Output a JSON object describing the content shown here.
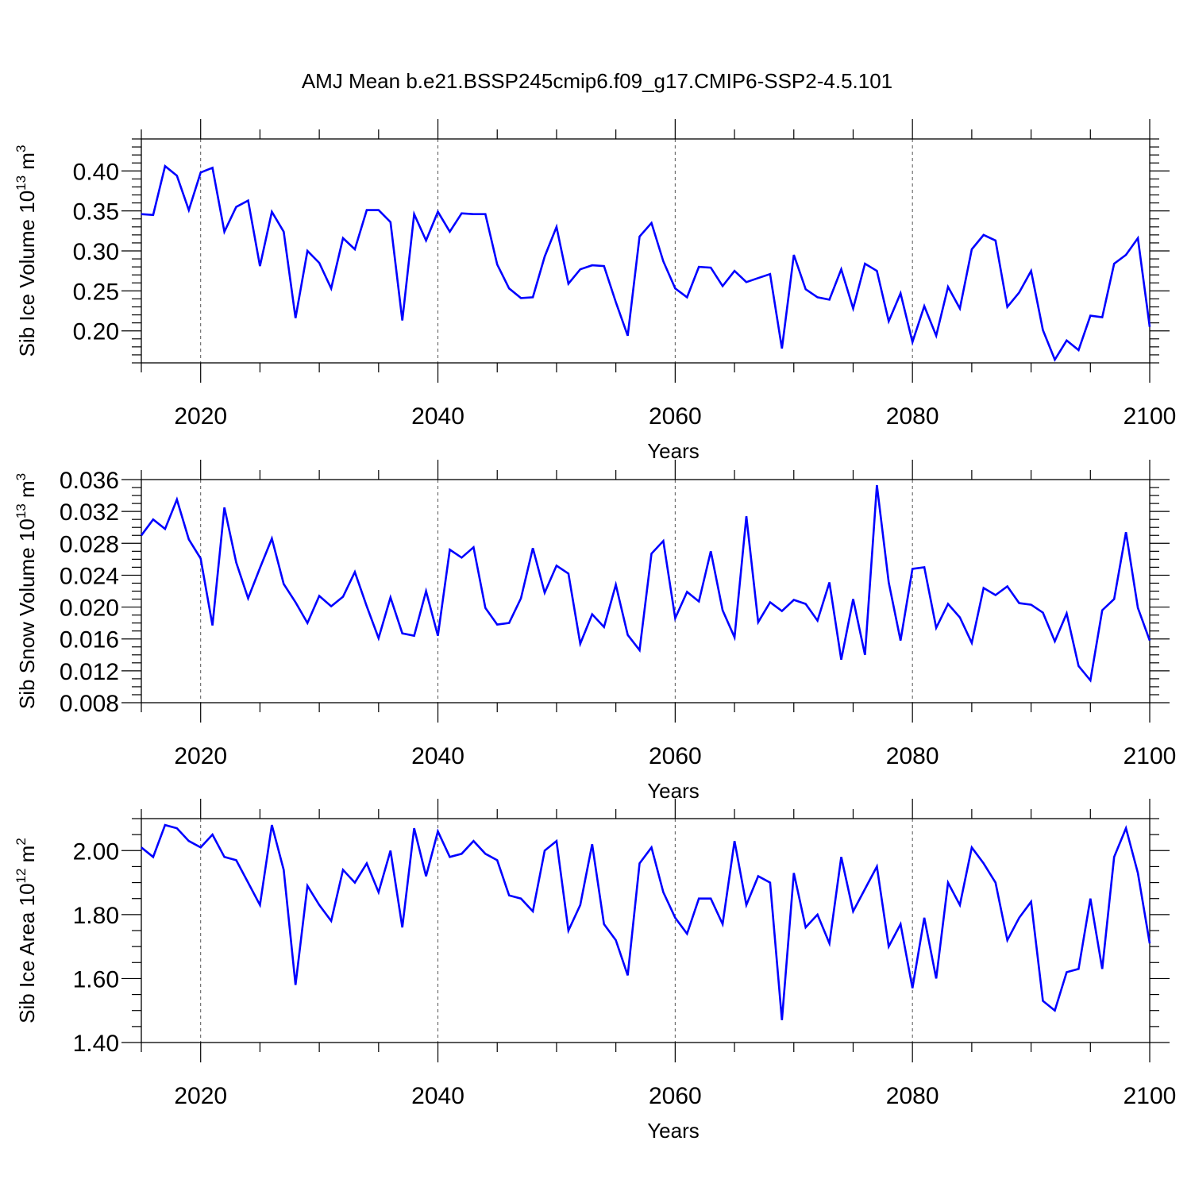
{
  "title": "AMJ Mean b.e21.BSSP245cmip6.f09_g17.CMIP6-SSP2-4.5.101",
  "colors": {
    "line": "#0000ff",
    "axis": "#000000",
    "grid": "#555555"
  },
  "chart_data": [
    {
      "type": "line",
      "ylabel": "Sib Ice Volume 10",
      "ylabel_sup1": "13",
      "ylabel_mid": " m",
      "ylabel_sup2": "3",
      "xlabel": "Years",
      "xlim": [
        2015,
        2100
      ],
      "ylim": [
        0.16,
        0.44
      ],
      "yticks": [
        0.2,
        0.25,
        0.3,
        0.35,
        0.4
      ],
      "ytick_labels": [
        "0.20",
        "0.25",
        "0.30",
        "0.35",
        "0.40"
      ],
      "yminor_step": 0.01,
      "xticks": [
        2020,
        2040,
        2060,
        2080,
        2100
      ],
      "xtick_labels": [
        "2020",
        "2040",
        "2060",
        "2080",
        "2100"
      ],
      "xminor_step": 5,
      "x_start": 2015,
      "values": [
        0.346,
        0.345,
        0.406,
        0.394,
        0.351,
        0.398,
        0.404,
        0.324,
        0.355,
        0.363,
        0.281,
        0.349,
        0.324,
        0.216,
        0.3,
        0.285,
        0.253,
        0.316,
        0.302,
        0.351,
        0.351,
        0.336,
        0.213,
        0.346,
        0.313,
        0.349,
        0.324,
        0.347,
        0.346,
        0.346,
        0.283,
        0.253,
        0.241,
        0.242,
        0.293,
        0.33,
        0.259,
        0.277,
        0.282,
        0.281,
        0.236,
        0.194,
        0.318,
        0.335,
        0.287,
        0.253,
        0.242,
        0.28,
        0.279,
        0.256,
        0.275,
        0.261,
        0.266,
        0.271,
        0.178,
        0.295,
        0.252,
        0.242,
        0.239,
        0.277,
        0.228,
        0.284,
        0.275,
        0.212,
        0.247,
        0.186,
        0.231,
        0.194,
        0.255,
        0.228,
        0.302,
        0.32,
        0.313,
        0.23,
        0.248,
        0.275,
        0.201,
        0.164,
        0.188,
        0.176,
        0.219,
        0.217,
        0.284,
        0.295,
        0.316,
        0.205
      ]
    },
    {
      "type": "line",
      "ylabel": "Sib Snow Volume 10",
      "ylabel_sup1": "13",
      "ylabel_mid": " m",
      "ylabel_sup2": "3",
      "xlabel": "Years",
      "xlim": [
        2015,
        2100
      ],
      "ylim": [
        0.008,
        0.036
      ],
      "yticks": [
        0.008,
        0.012,
        0.016,
        0.02,
        0.024,
        0.028,
        0.032,
        0.036
      ],
      "ytick_labels": [
        "0.008",
        "0.012",
        "0.016",
        "0.020",
        "0.024",
        "0.028",
        "0.032",
        "0.036"
      ],
      "yminor_step": 0.001,
      "xticks": [
        2020,
        2040,
        2060,
        2080,
        2100
      ],
      "xtick_labels": [
        "2020",
        "2040",
        "2060",
        "2080",
        "2100"
      ],
      "xminor_step": 5,
      "x_start": 2015,
      "values": [
        0.029,
        0.031,
        0.0298,
        0.0335,
        0.0285,
        0.0261,
        0.0177,
        0.0325,
        0.0256,
        0.0211,
        0.0249,
        0.0286,
        0.0229,
        0.0206,
        0.018,
        0.0214,
        0.0201,
        0.0213,
        0.0244,
        0.0201,
        0.0161,
        0.0212,
        0.0167,
        0.0164,
        0.022,
        0.0164,
        0.0272,
        0.0262,
        0.0275,
        0.0199,
        0.0178,
        0.018,
        0.0211,
        0.0274,
        0.0218,
        0.0252,
        0.0242,
        0.0154,
        0.0191,
        0.0175,
        0.0228,
        0.0165,
        0.0146,
        0.0267,
        0.0283,
        0.0186,
        0.0219,
        0.0207,
        0.027,
        0.0196,
        0.0162,
        0.0314,
        0.0181,
        0.0206,
        0.0195,
        0.0209,
        0.0204,
        0.0183,
        0.0231,
        0.0134,
        0.021,
        0.014,
        0.0353,
        0.0231,
        0.0158,
        0.0248,
        0.025,
        0.0174,
        0.0204,
        0.0187,
        0.0155,
        0.0224,
        0.0215,
        0.0226,
        0.0205,
        0.0203,
        0.0193,
        0.0157,
        0.0192,
        0.0126,
        0.0108,
        0.0196,
        0.021,
        0.0294,
        0.0199,
        0.0158
      ]
    },
    {
      "type": "line",
      "ylabel": "Sib Ice Area 10",
      "ylabel_sup1": "12",
      "ylabel_mid": " m",
      "ylabel_sup2": "2",
      "xlabel": "Years",
      "xlim": [
        2015,
        2100
      ],
      "ylim": [
        1.4,
        2.1
      ],
      "yticks": [
        1.4,
        1.6,
        1.8,
        2.0
      ],
      "ytick_labels": [
        "1.40",
        "1.60",
        "1.80",
        "2.00"
      ],
      "yminor_step": 0.05,
      "xticks": [
        2020,
        2040,
        2060,
        2080,
        2100
      ],
      "xtick_labels": [
        "2020",
        "2040",
        "2060",
        "2080",
        "2100"
      ],
      "xminor_step": 5,
      "x_start": 2015,
      "values": [
        2.01,
        1.98,
        2.08,
        2.07,
        2.03,
        2.01,
        2.05,
        1.98,
        1.97,
        1.9,
        1.83,
        2.08,
        1.94,
        1.58,
        1.89,
        1.83,
        1.78,
        1.94,
        1.9,
        1.96,
        1.87,
        2.0,
        1.76,
        2.07,
        1.92,
        2.06,
        1.98,
        1.99,
        2.03,
        1.99,
        1.97,
        1.86,
        1.85,
        1.81,
        2.0,
        2.03,
        1.75,
        1.83,
        2.02,
        1.77,
        1.72,
        1.61,
        1.96,
        2.01,
        1.87,
        1.79,
        1.74,
        1.85,
        1.85,
        1.77,
        2.03,
        1.83,
        1.92,
        1.9,
        1.47,
        1.93,
        1.76,
        1.8,
        1.71,
        1.98,
        1.81,
        1.88,
        1.95,
        1.7,
        1.77,
        1.57,
        1.79,
        1.6,
        1.9,
        1.83,
        2.01,
        1.96,
        1.9,
        1.72,
        1.79,
        1.84,
        1.53,
        1.5,
        1.62,
        1.63,
        1.85,
        1.63,
        1.98,
        2.07,
        1.93,
        1.71
      ]
    }
  ]
}
